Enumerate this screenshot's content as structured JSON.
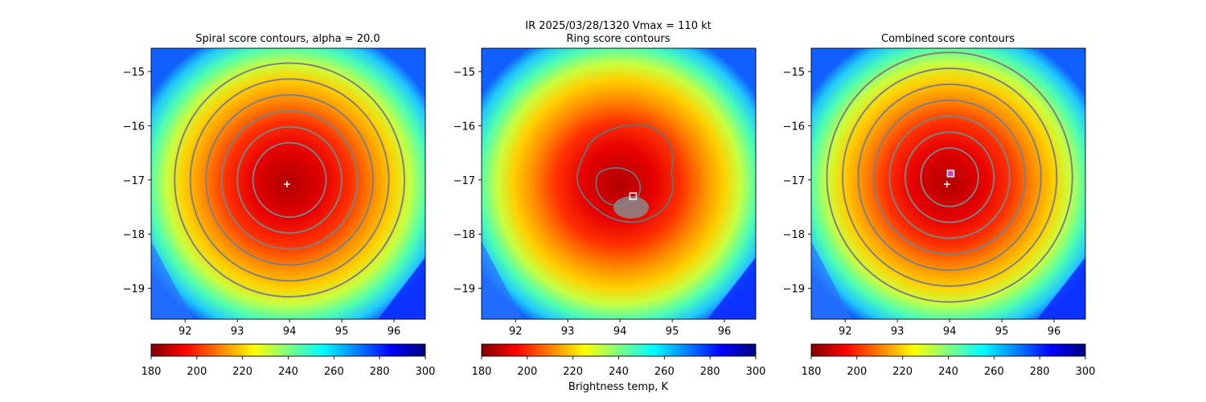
{
  "suptitle": {
    "line1": "IR  2025/03/28/1320    Vmax = 110 kt"
  },
  "colors": {
    "contour": "#808080",
    "ring_contour": "#6e6e6e",
    "marker_plus": "#ffffff",
    "marker_square": "#ffffff",
    "marker_combined_fill": "#d040c0"
  },
  "colormap": {
    "name": "jet_r",
    "stops": [
      "#800000",
      "#ff0000",
      "#ff8000",
      "#ffff00",
      "#80ff80",
      "#00ffff",
      "#0080ff",
      "#0000ff",
      "#000080"
    ]
  },
  "chart_data": [
    {
      "type": "heatmap",
      "title": "Spiral score contours, alpha = 20.0",
      "xlabel": "",
      "ylabel": "",
      "xlim": [
        91.35,
        96.6
      ],
      "ylim": [
        -19.57,
        -14.57
      ],
      "xticks": [
        92,
        93,
        94,
        95,
        96
      ],
      "yticks": [
        -15,
        -16,
        -17,
        -18,
        -19
      ],
      "xtick_labels": [
        "92",
        "93",
        "94",
        "95",
        "96"
      ],
      "ytick_labels": [
        "−15",
        "−16",
        "−17",
        "−18",
        "−19"
      ],
      "colorbar": {
        "min": 180,
        "max": 300,
        "ticks": [
          180,
          200,
          220,
          240,
          260,
          280,
          300
        ],
        "tick_labels": [
          "180",
          "200",
          "220",
          "240",
          "260",
          "280",
          "300"
        ],
        "label": ""
      },
      "contour_center": [
        94.0,
        -17.0
      ],
      "contour_radii_deg": [
        0.7,
        1.0,
        1.3,
        1.6,
        1.9,
        2.2
      ],
      "markers": [
        {
          "kind": "plus",
          "x": 93.95,
          "y": -17.08
        }
      ]
    },
    {
      "type": "heatmap",
      "title": "Ring score contours",
      "xlabel": "",
      "ylabel": "",
      "xlim": [
        91.35,
        96.6
      ],
      "ylim": [
        -19.57,
        -14.57
      ],
      "xticks": [
        92,
        93,
        94,
        95,
        96
      ],
      "yticks": [
        -15,
        -16,
        -17,
        -18,
        -19
      ],
      "xtick_labels": [
        "92",
        "93",
        "94",
        "95",
        "96"
      ],
      "ytick_labels": [
        "−15",
        "−16",
        "−17",
        "−18",
        "−19"
      ],
      "colorbar": {
        "min": 180,
        "max": 300,
        "ticks": [
          180,
          200,
          220,
          240,
          260,
          280,
          300
        ],
        "tick_labels": [
          "180",
          "200",
          "220",
          "240",
          "260",
          "280",
          "300"
        ],
        "label": "Brightness temp, K"
      },
      "markers": [
        {
          "kind": "square",
          "x": 94.25,
          "y": -17.3
        }
      ]
    },
    {
      "type": "heatmap",
      "title": "Combined score contours",
      "xlabel": "",
      "ylabel": "",
      "xlim": [
        91.35,
        96.6
      ],
      "ylim": [
        -19.57,
        -14.57
      ],
      "xticks": [
        92,
        93,
        94,
        95,
        96
      ],
      "yticks": [
        -15,
        -16,
        -17,
        -18,
        -19
      ],
      "xtick_labels": [
        "92",
        "93",
        "94",
        "95",
        "96"
      ],
      "ytick_labels": [
        "−15",
        "−16",
        "−17",
        "−18",
        "−19"
      ],
      "colorbar": {
        "min": 180,
        "max": 300,
        "ticks": [
          180,
          200,
          220,
          240,
          260,
          280,
          300
        ],
        "tick_labels": [
          "180",
          "200",
          "220",
          "240",
          "260",
          "280",
          "300"
        ],
        "label": ""
      },
      "contour_center": [
        94.0,
        -16.95
      ],
      "contour_radii_deg": [
        0.55,
        0.85,
        1.15,
        1.45,
        1.75,
        2.05,
        2.35
      ],
      "markers": [
        {
          "kind": "plus",
          "x": 93.95,
          "y": -17.08
        },
        {
          "kind": "square_filled",
          "x": 94.02,
          "y": -16.88
        }
      ]
    }
  ]
}
